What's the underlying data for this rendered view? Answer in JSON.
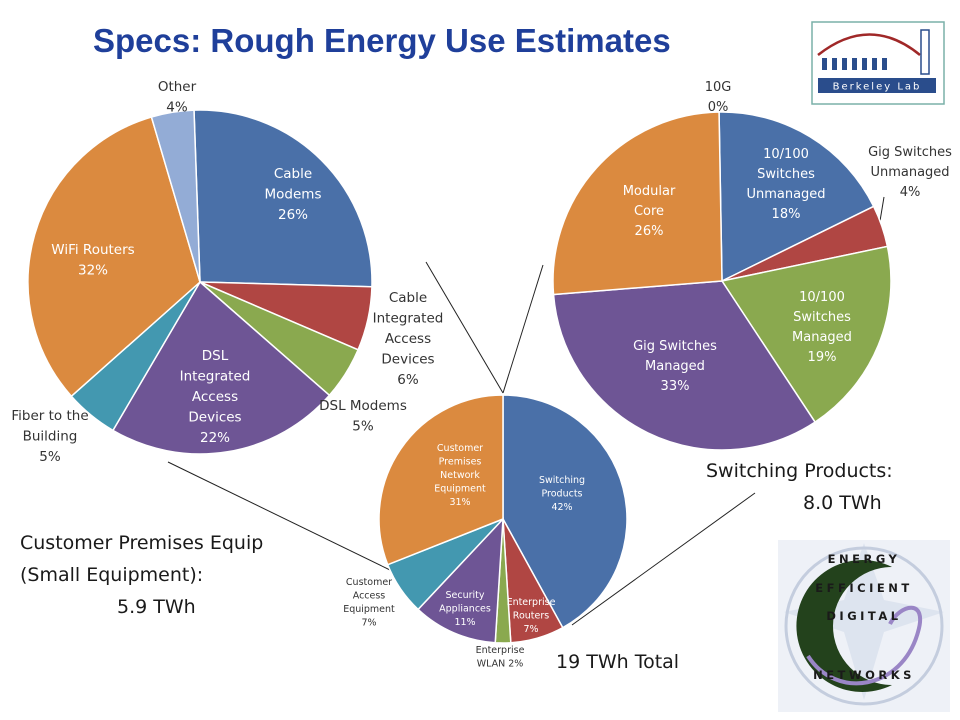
{
  "title": "Specs: Rough Energy Use Estimates",
  "annotations": {
    "cpe_line1": "Customer Premises Equip",
    "cpe_line2": "(Small Equipment):",
    "cpe_value": "5.9 TWh",
    "switching_line1": "Switching Products:",
    "switching_value": "8.0 TWh",
    "total": "19 TWh Total"
  },
  "logos": {
    "berkeley_lab": "Berkeley Lab",
    "eedn": [
      "ENERGY",
      "EFFICIENT",
      "DIGITAL",
      "NETWORKS"
    ]
  },
  "colors": {
    "blue": "#4a70a8",
    "red": "#b04643",
    "green": "#8aa94f",
    "purple": "#6e5595",
    "teal": "#4398b0",
    "orange": "#db8a3f",
    "lightblue": "#93acd6",
    "title": "#1f3f9a"
  },
  "chart_data": [
    {
      "type": "pie",
      "name": "Customer Premises Equipment",
      "slices": [
        {
          "label": "Cable Modems",
          "value": 26,
          "color": "#4a70a8",
          "text": [
            "Cable",
            "Modems",
            "26%"
          ]
        },
        {
          "label": "Cable Integrated Access Devices",
          "value": 6,
          "color": "#b04643",
          "text": [
            "Cable",
            "Integrated",
            "Access",
            "Devices",
            "6%"
          ]
        },
        {
          "label": "DSL Modems",
          "value": 5,
          "color": "#8aa94f",
          "text": [
            "DSL Modems",
            "5%"
          ]
        },
        {
          "label": "DSL Integrated Access Devices",
          "value": 22,
          "color": "#6e5595",
          "text": [
            "DSL",
            "Integrated",
            "Access",
            "Devices",
            "22%"
          ]
        },
        {
          "label": "Fiber to the Building",
          "value": 5,
          "color": "#4398b0",
          "text": [
            "Fiber to the",
            "Building",
            "5%"
          ]
        },
        {
          "label": "WiFi Routers",
          "value": 32,
          "color": "#db8a3f",
          "text": [
            "WiFi Routers",
            "32%"
          ]
        },
        {
          "label": "Other",
          "value": 4,
          "color": "#93acd6",
          "text": [
            "Other",
            "4%"
          ]
        }
      ]
    },
    {
      "type": "pie",
      "name": "Switching Products",
      "slices": [
        {
          "label": "10G",
          "value": 0,
          "color": "#93acd6",
          "text": [
            "10G",
            "0%"
          ]
        },
        {
          "label": "10/100 Switches Unmanaged",
          "value": 18,
          "color": "#4a70a8",
          "text": [
            "10/100",
            "Switches",
            "Unmanaged",
            "18%"
          ]
        },
        {
          "label": "Gig Switches Unmanaged",
          "value": 4,
          "color": "#b04643",
          "text": [
            "Gig Switches",
            "Unmanaged",
            "4%"
          ]
        },
        {
          "label": "10/100 Switches Managed",
          "value": 19,
          "color": "#8aa94f",
          "text": [
            "10/100",
            "Switches",
            "Managed",
            "19%"
          ]
        },
        {
          "label": "Gig Switches Managed",
          "value": 33,
          "color": "#6e5595",
          "text": [
            "Gig Switches",
            "Managed",
            "33%"
          ]
        },
        {
          "label": "Modular Core",
          "value": 26,
          "color": "#db8a3f",
          "text": [
            "Modular",
            "Core",
            "26%"
          ]
        }
      ]
    },
    {
      "type": "pie",
      "name": "Total",
      "slices": [
        {
          "label": "Switching Products",
          "value": 42,
          "color": "#4a70a8",
          "text": [
            "Switching",
            "Products",
            "42%"
          ]
        },
        {
          "label": "Enterprise Routers",
          "value": 7,
          "color": "#b04643",
          "text": [
            "Enterprise",
            "Routers",
            "7%"
          ]
        },
        {
          "label": "Enterprise WLAN",
          "value": 2,
          "color": "#8aa94f",
          "text": [
            "Enterprise",
            "WLAN 2%"
          ]
        },
        {
          "label": "Security Appliances",
          "value": 11,
          "color": "#6e5595",
          "text": [
            "Security",
            "Appliances",
            "11%"
          ]
        },
        {
          "label": "Customer Access Equipment",
          "value": 7,
          "color": "#4398b0",
          "text": [
            "Customer",
            "Access",
            "Equipment",
            "7%"
          ]
        },
        {
          "label": "Customer Premises Network Equipment",
          "value": 31,
          "color": "#db8a3f",
          "text": [
            "Customer",
            "Premises",
            "Network",
            "Equipment",
            "31%"
          ]
        }
      ]
    }
  ]
}
